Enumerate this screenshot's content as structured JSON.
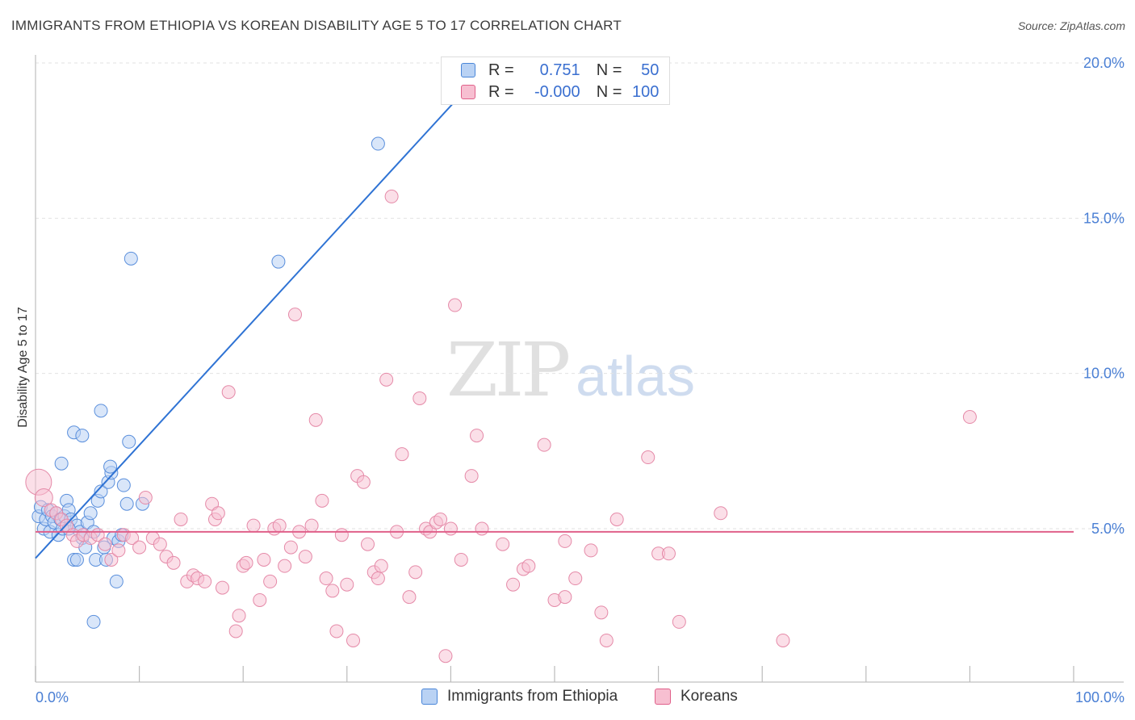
{
  "title": "IMMIGRANTS FROM ETHIOPIA VS KOREAN DISABILITY AGE 5 TO 17 CORRELATION CHART",
  "source": "Source: ZipAtlas.com",
  "watermark": {
    "zip": "ZIP",
    "atlas": "atlas"
  },
  "colors": {
    "blue": "#4a86d8",
    "blue_fill": "#b9d2f4",
    "pink": "#e0608a",
    "pink_fill": "#f7bfd1",
    "tick": "#4a7fd4"
  },
  "legend": {
    "rows": [
      {
        "r_label": "R =",
        "r_value": "0.751",
        "n_label": "N =",
        "n_value": "50"
      },
      {
        "r_label": "R =",
        "r_value": "-0.000",
        "n_label": "N =",
        "n_value": "100"
      }
    ]
  },
  "bottom_legend": [
    "Immigrants from Ethiopia",
    "Koreans"
  ],
  "chart_data": {
    "type": "scatter",
    "title": "IMMIGRANTS FROM ETHIOPIA VS KOREAN DISABILITY AGE 5 TO 17 CORRELATION CHART",
    "xlabel": "",
    "ylabel": "Disability Age 5 to 17",
    "xlim": [
      0,
      100
    ],
    "ylim": [
      0,
      20.5
    ],
    "x_tick_labels": [
      "0.0%",
      "100.0%"
    ],
    "y_ticks": [
      5,
      10,
      15,
      20
    ],
    "y_tick_labels": [
      "5.0%",
      "10.0%",
      "15.0%",
      "20.0%"
    ],
    "grid": true,
    "series": [
      {
        "name": "Immigrants from Ethiopia",
        "color": "#4a86d8",
        "trend": {
          "x": [
            0,
            40.5
          ],
          "y": [
            4.05,
            18.8
          ]
        },
        "points": [
          [
            0.3,
            5.4
          ],
          [
            0.5,
            5.7
          ],
          [
            0.8,
            5.0
          ],
          [
            1.0,
            5.3
          ],
          [
            1.2,
            5.6
          ],
          [
            1.4,
            4.9
          ],
          [
            1.6,
            5.4
          ],
          [
            1.8,
            5.2
          ],
          [
            2.0,
            5.5
          ],
          [
            2.2,
            4.8
          ],
          [
            2.4,
            5.3
          ],
          [
            2.6,
            5.0
          ],
          [
            2.8,
            5.4
          ],
          [
            3.0,
            5.9
          ],
          [
            3.2,
            5.6
          ],
          [
            3.4,
            5.3
          ],
          [
            2.5,
            7.1
          ],
          [
            3.7,
            4.0
          ],
          [
            4.0,
            5.1
          ],
          [
            4.3,
            4.9
          ],
          [
            3.7,
            8.1
          ],
          [
            4.5,
            4.7
          ],
          [
            4.8,
            4.4
          ],
          [
            5.0,
            5.2
          ],
          [
            5.3,
            5.5
          ],
          [
            5.6,
            4.9
          ],
          [
            5.8,
            4.0
          ],
          [
            6.0,
            5.9
          ],
          [
            6.3,
            6.2
          ],
          [
            4.5,
            8.0
          ],
          [
            6.6,
            4.4
          ],
          [
            6.8,
            4.0
          ],
          [
            7.0,
            6.5
          ],
          [
            7.3,
            6.8
          ],
          [
            7.5,
            4.7
          ],
          [
            7.8,
            3.3
          ],
          [
            8.0,
            4.6
          ],
          [
            8.3,
            4.8
          ],
          [
            8.5,
            6.4
          ],
          [
            8.8,
            5.8
          ],
          [
            6.3,
            8.8
          ],
          [
            9.0,
            7.8
          ],
          [
            9.2,
            13.7
          ],
          [
            10.3,
            5.8
          ],
          [
            5.6,
            2.0
          ],
          [
            3.2,
            5.0
          ],
          [
            23.4,
            13.6
          ],
          [
            33.0,
            17.4
          ],
          [
            4.0,
            4.0
          ],
          [
            7.2,
            7.0
          ]
        ]
      },
      {
        "name": "Koreans",
        "color": "#e0608a",
        "trend": {
          "x": [
            0,
            100
          ],
          "y": [
            4.9,
            4.9
          ]
        },
        "points": [
          [
            0.3,
            6.5
          ],
          [
            0.8,
            6.0
          ],
          [
            1.5,
            5.6
          ],
          [
            2.0,
            5.5
          ],
          [
            2.5,
            5.3
          ],
          [
            3.0,
            5.1
          ],
          [
            3.6,
            4.8
          ],
          [
            4.0,
            4.6
          ],
          [
            4.6,
            4.8
          ],
          [
            5.3,
            4.7
          ],
          [
            6.0,
            4.8
          ],
          [
            6.7,
            4.5
          ],
          [
            7.3,
            4.0
          ],
          [
            8.0,
            4.3
          ],
          [
            8.5,
            4.8
          ],
          [
            9.3,
            4.7
          ],
          [
            10.0,
            4.4
          ],
          [
            10.6,
            6.0
          ],
          [
            11.3,
            4.7
          ],
          [
            12.0,
            4.5
          ],
          [
            12.6,
            4.1
          ],
          [
            13.3,
            3.9
          ],
          [
            14.0,
            5.3
          ],
          [
            14.6,
            3.3
          ],
          [
            15.2,
            3.5
          ],
          [
            15.6,
            3.4
          ],
          [
            16.3,
            3.3
          ],
          [
            17.0,
            5.8
          ],
          [
            17.3,
            5.3
          ],
          [
            17.6,
            5.5
          ],
          [
            18.0,
            3.1
          ],
          [
            18.6,
            9.4
          ],
          [
            19.3,
            1.7
          ],
          [
            19.6,
            2.2
          ],
          [
            20.0,
            3.8
          ],
          [
            20.3,
            3.9
          ],
          [
            21.0,
            5.1
          ],
          [
            21.6,
            2.7
          ],
          [
            22.0,
            4.0
          ],
          [
            22.6,
            3.3
          ],
          [
            23.0,
            5.0
          ],
          [
            23.5,
            5.1
          ],
          [
            24.0,
            3.8
          ],
          [
            24.6,
            4.4
          ],
          [
            25.0,
            11.9
          ],
          [
            25.4,
            4.9
          ],
          [
            26.0,
            4.1
          ],
          [
            26.6,
            5.1
          ],
          [
            27.0,
            8.5
          ],
          [
            27.6,
            5.9
          ],
          [
            28.0,
            3.4
          ],
          [
            28.6,
            3.0
          ],
          [
            29.0,
            1.7
          ],
          [
            29.5,
            4.8
          ],
          [
            30.0,
            3.2
          ],
          [
            30.6,
            1.4
          ],
          [
            31.0,
            6.7
          ],
          [
            31.6,
            6.5
          ],
          [
            32.0,
            4.5
          ],
          [
            32.6,
            3.6
          ],
          [
            33.0,
            3.4
          ],
          [
            33.3,
            3.8
          ],
          [
            33.8,
            9.8
          ],
          [
            34.3,
            15.7
          ],
          [
            34.8,
            4.9
          ],
          [
            35.3,
            7.4
          ],
          [
            36.0,
            2.8
          ],
          [
            36.6,
            3.6
          ],
          [
            37.0,
            9.2
          ],
          [
            37.6,
            5.0
          ],
          [
            38.0,
            4.9
          ],
          [
            38.6,
            5.2
          ],
          [
            39.0,
            5.3
          ],
          [
            39.5,
            0.9
          ],
          [
            40.0,
            5.0
          ],
          [
            40.4,
            12.2
          ],
          [
            41.0,
            4.0
          ],
          [
            42.0,
            6.7
          ],
          [
            42.5,
            8.0
          ],
          [
            43.0,
            5.0
          ],
          [
            45.0,
            4.5
          ],
          [
            46.0,
            3.2
          ],
          [
            47.0,
            3.7
          ],
          [
            47.5,
            3.8
          ],
          [
            49.0,
            7.7
          ],
          [
            50.0,
            2.7
          ],
          [
            51.0,
            2.8
          ],
          [
            52.0,
            3.4
          ],
          [
            53.5,
            4.3
          ],
          [
            54.5,
            2.3
          ],
          [
            55.0,
            1.4
          ],
          [
            56.0,
            5.3
          ],
          [
            59.0,
            7.3
          ],
          [
            60.0,
            4.2
          ],
          [
            61.0,
            4.2
          ],
          [
            62.0,
            2.0
          ],
          [
            66.0,
            5.5
          ],
          [
            72.0,
            1.4
          ],
          [
            90.0,
            8.6
          ],
          [
            51.0,
            4.6
          ]
        ]
      }
    ]
  }
}
